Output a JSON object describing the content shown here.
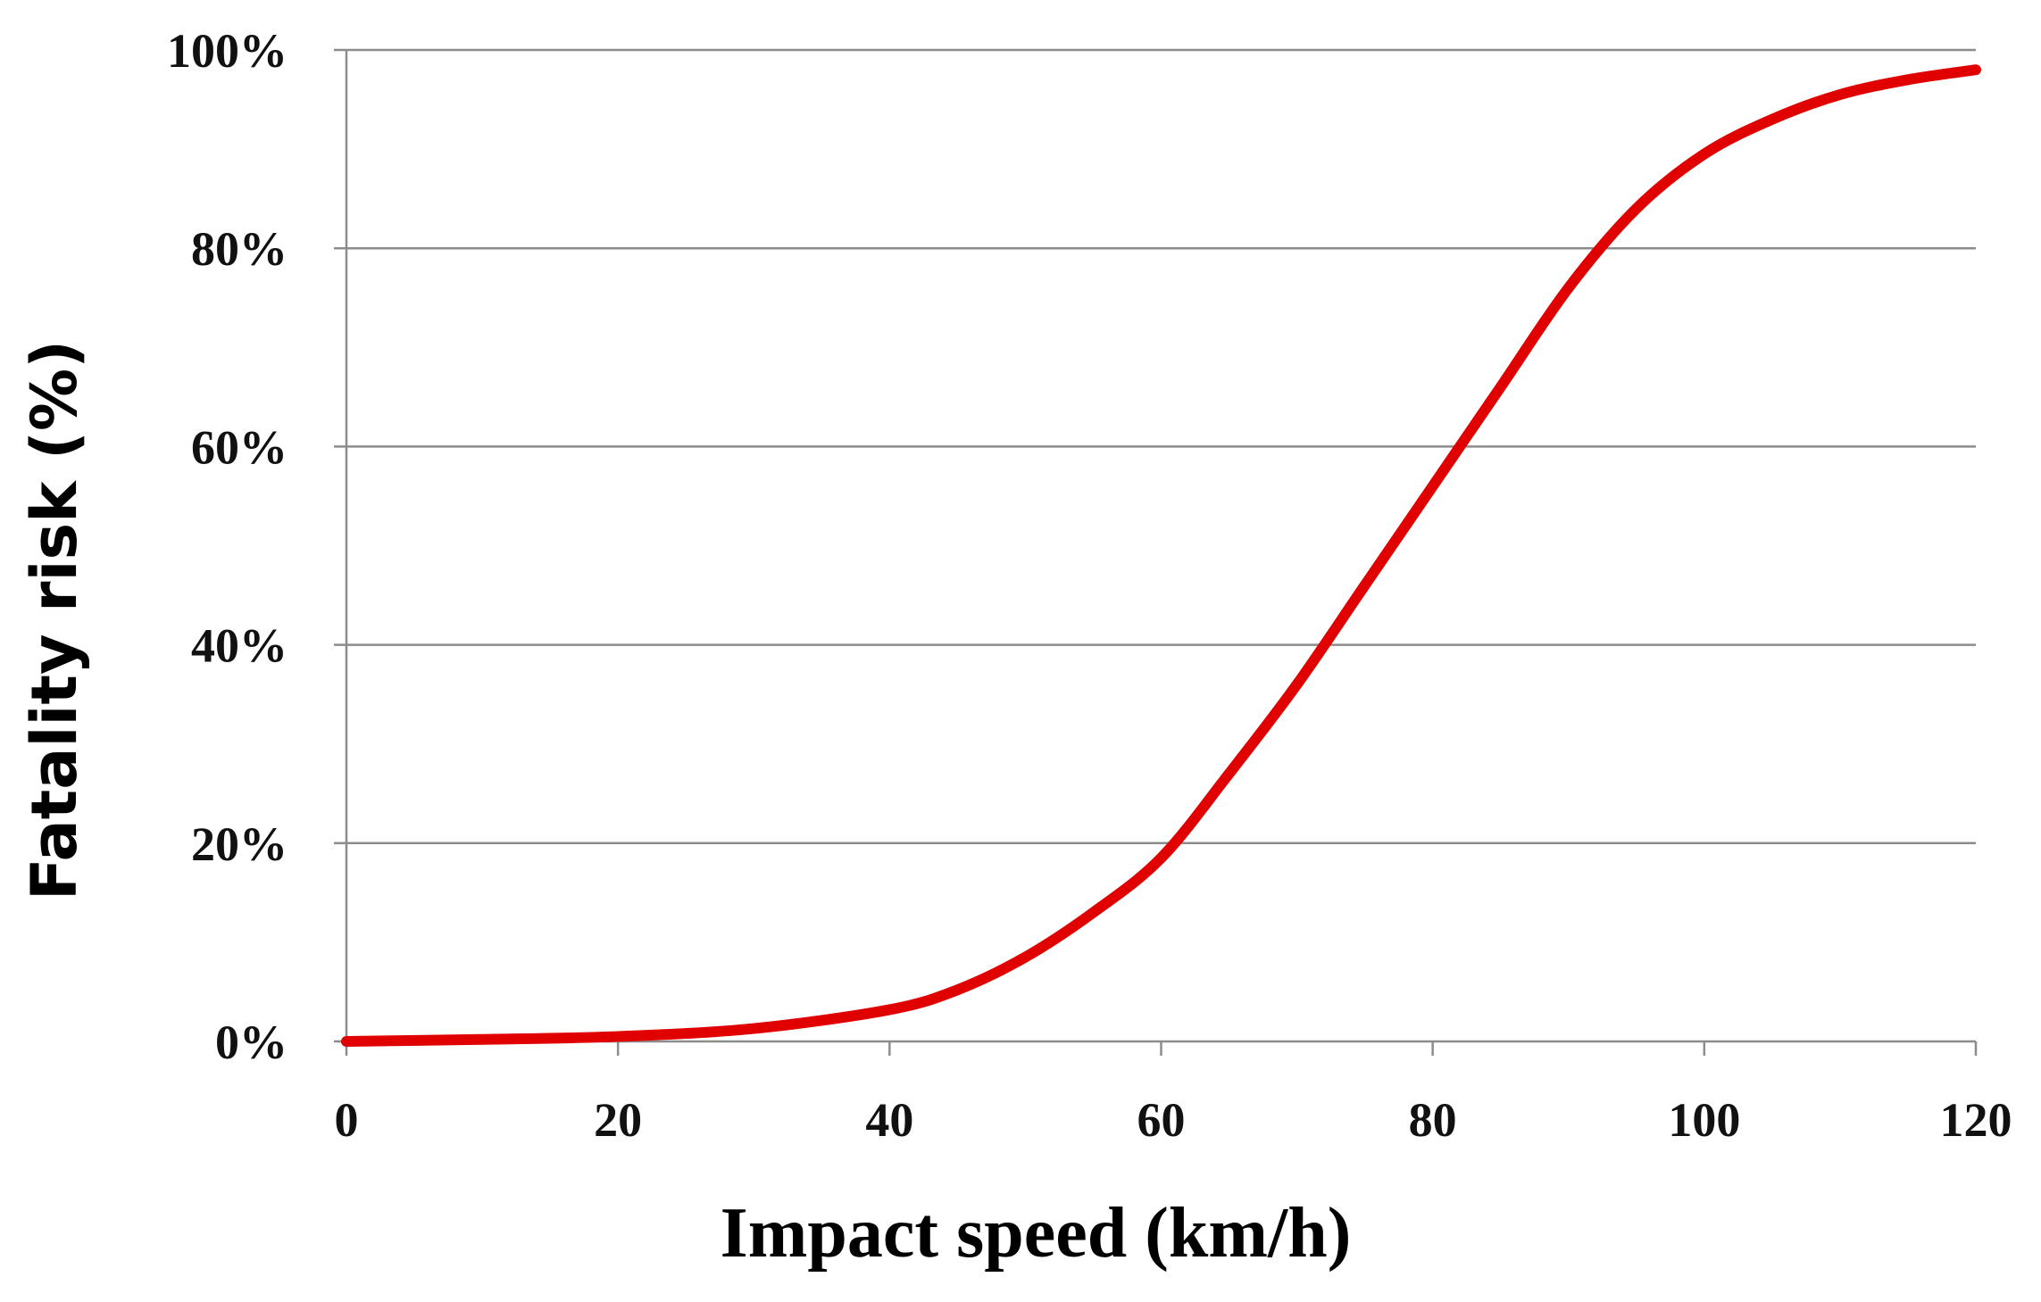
{
  "chart_data": {
    "type": "line",
    "title": "",
    "xlabel": "Impact speed (km/h)",
    "ylabel": "Fatality risk (%)",
    "xlim": [
      0,
      120
    ],
    "ylim": [
      0,
      100
    ],
    "x_ticks": [
      0,
      20,
      40,
      60,
      80,
      100,
      120
    ],
    "x_tick_labels": [
      "0",
      "20",
      "40",
      "60",
      "80",
      "100",
      "120"
    ],
    "y_ticks": [
      0,
      20,
      40,
      60,
      80,
      100
    ],
    "y_tick_labels": [
      "0%",
      "20%",
      "40%",
      "60%",
      "80%",
      "100%"
    ],
    "grid": "horizontal",
    "legend": "none",
    "series": [
      {
        "name": "Fatality risk",
        "color": "#e00000",
        "x": [
          0,
          10,
          20,
          30,
          40,
          45,
          50,
          55,
          60,
          65,
          70,
          75,
          80,
          85,
          90,
          95,
          100,
          105,
          110,
          115,
          120
        ],
        "values": [
          0,
          0.2,
          0.5,
          1.3,
          3.2,
          5.2,
          8.5,
          13,
          18.5,
          27,
          36,
          46,
          56,
          66,
          76,
          84,
          89.5,
          93,
          95.5,
          97,
          98
        ]
      }
    ]
  }
}
